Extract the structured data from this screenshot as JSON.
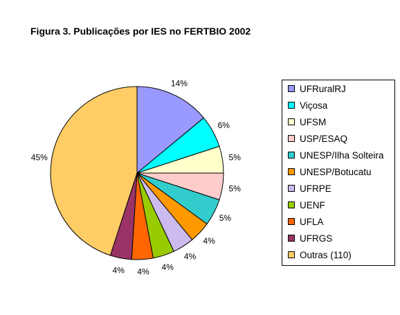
{
  "title": "Figura 3. Publicações por IES no FERTBIO 2002",
  "chart_data": {
    "type": "pie",
    "title": "Figura 3. Publicações por IES no FERTBIO 2002",
    "categories": [
      "UFRuralRJ",
      "Viçosa",
      "UFSM",
      "USP/ESAQ",
      "UNESP/Ilha Solteira",
      "UNESP/Botucatu",
      "UFRPE",
      "UENF",
      "UFLA",
      "UFRGS",
      "Outras (110)"
    ],
    "values": [
      14,
      6,
      5,
      5,
      5,
      4,
      4,
      4,
      4,
      4,
      45
    ],
    "labels": [
      "14%",
      "6%",
      "5%",
      "5%",
      "5%",
      "4%",
      "4%",
      "4%",
      "4%",
      "4%",
      "45%"
    ],
    "colors": [
      "#9999FF",
      "#00FFFF",
      "#FFFFCC",
      "#FFCCCC",
      "#33CCCC",
      "#FF9900",
      "#CCBBEE",
      "#99CC00",
      "#FF6600",
      "#993366",
      "#FFCC66"
    ],
    "legend_position": "right"
  }
}
